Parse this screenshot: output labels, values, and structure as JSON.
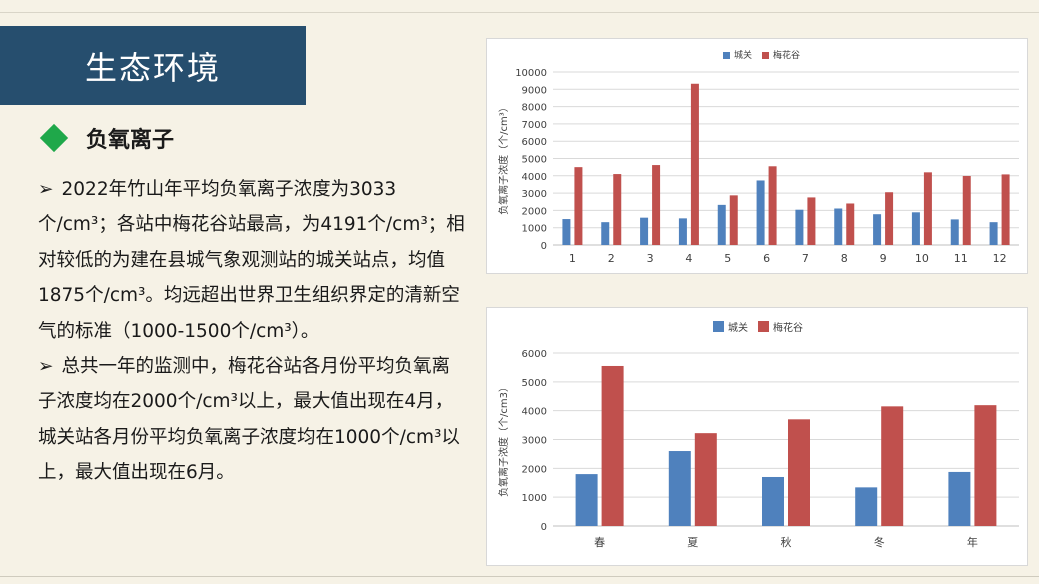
{
  "slide": {
    "title": "生态环境",
    "heading": "负氧离子",
    "bullet_symbol": "➢",
    "paragraphs": [
      "2022年竹山年平均负氧离子浓度为3033个/cm³；各站中梅花谷站最高，为4191个/cm³；相对较低的为建在县城气象观测站的城关站点，均值1875个/cm³。均远超出世界卫生组织界定的清新空气的标准（1000-1500个/cm³）。",
      "总共一年的监测中，梅花谷站各月份平均负氧离子浓度均在2000个/cm³以上，最大值出现在4月，城关站各月份平均负氧离子浓度均在1000个/cm³以上，最大值出现在6月。"
    ]
  },
  "colors": {
    "title_bg": "#264e6e",
    "diamond": "#1fa84a",
    "series_chengguan": "#4f81bd",
    "series_meihuagu": "#c0504d"
  },
  "chart_data": [
    {
      "type": "bar",
      "categories": [
        "1",
        "2",
        "3",
        "4",
        "5",
        "6",
        "7",
        "8",
        "9",
        "10",
        "11",
        "12"
      ],
      "series": [
        {
          "name": "城关",
          "values": [
            1500,
            1320,
            1580,
            1540,
            2320,
            3730,
            2040,
            2110,
            1780,
            1890,
            1480,
            1320
          ]
        },
        {
          "name": "梅花谷",
          "values": [
            4500,
            4100,
            4620,
            9320,
            2870,
            4550,
            2750,
            2400,
            3050,
            4200,
            3990,
            4080
          ]
        }
      ],
      "title": "",
      "xlabel": "",
      "ylabel": "负氧离子浓度（个/cm³）",
      "ylim": [
        0,
        10000
      ],
      "yticks": [
        0,
        1000,
        2000,
        3000,
        4000,
        5000,
        6000,
        7000,
        8000,
        9000,
        10000
      ],
      "grid": true,
      "legend": "top-center"
    },
    {
      "type": "bar",
      "categories": [
        "春",
        "夏",
        "秋",
        "冬",
        "年"
      ],
      "series": [
        {
          "name": "城关",
          "values": [
            1800,
            2600,
            1700,
            1340,
            1875
          ]
        },
        {
          "name": "梅花谷",
          "values": [
            5550,
            3220,
            3700,
            4150,
            4191
          ]
        }
      ],
      "title": "",
      "xlabel": "",
      "ylabel": "负氧离子浓度（个/cm3）",
      "ylim": [
        0,
        6000
      ],
      "yticks": [
        0,
        1000,
        2000,
        3000,
        4000,
        5000,
        6000
      ],
      "grid": true,
      "legend": "top-center"
    }
  ]
}
